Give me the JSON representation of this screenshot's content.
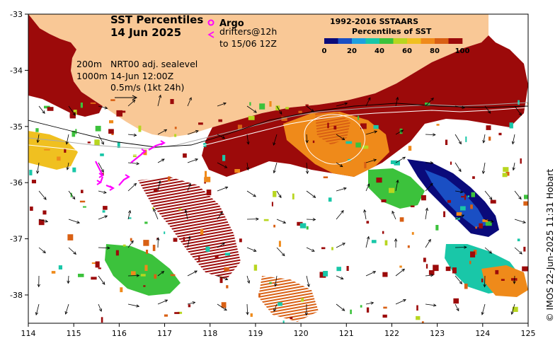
{
  "map": {
    "title_line1": "SST Percentiles",
    "title_line2": "14 Jun 2025",
    "legend_argo": "Argo",
    "legend_drifters_line1": "drifters@12h",
    "legend_drifters_line2": "to 15/06 12Z",
    "depth_label_1": "200m",
    "depth_label_2": "1000m",
    "sealevel_label": "NRT00 adj. sealevel",
    "time_label": "14-Jun 12:00Z",
    "scale_label": "0.5m/s (1kt 24h)",
    "colorbar_title_line1": "1992-2016 SSTAARS",
    "colorbar_title_line2": "Percentiles of SST",
    "colorbar_ticks": [
      "0",
      "20",
      "40",
      "60",
      "80",
      "100"
    ],
    "colorbar_colors": [
      "#0a0a7a",
      "#1a4fc4",
      "#1ea0e0",
      "#19c7a8",
      "#3cc23c",
      "#b8d620",
      "#f0c020",
      "#ef8a1a",
      "#d96014",
      "#9c0a0a"
    ],
    "credit": "© IMOS 22-Jun-2025 11:31 Hobart",
    "land_color": "#f9c896",
    "x_ticks": [
      "114",
      "115",
      "116",
      "117",
      "118",
      "119",
      "120",
      "121",
      "122",
      "123",
      "124",
      "125"
    ],
    "y_ticks": [
      "-33",
      "-34",
      "-35",
      "-36",
      "-37",
      "-38"
    ],
    "argo_color": "#ff00ff",
    "drifter_color": "#ff00ff"
  }
}
